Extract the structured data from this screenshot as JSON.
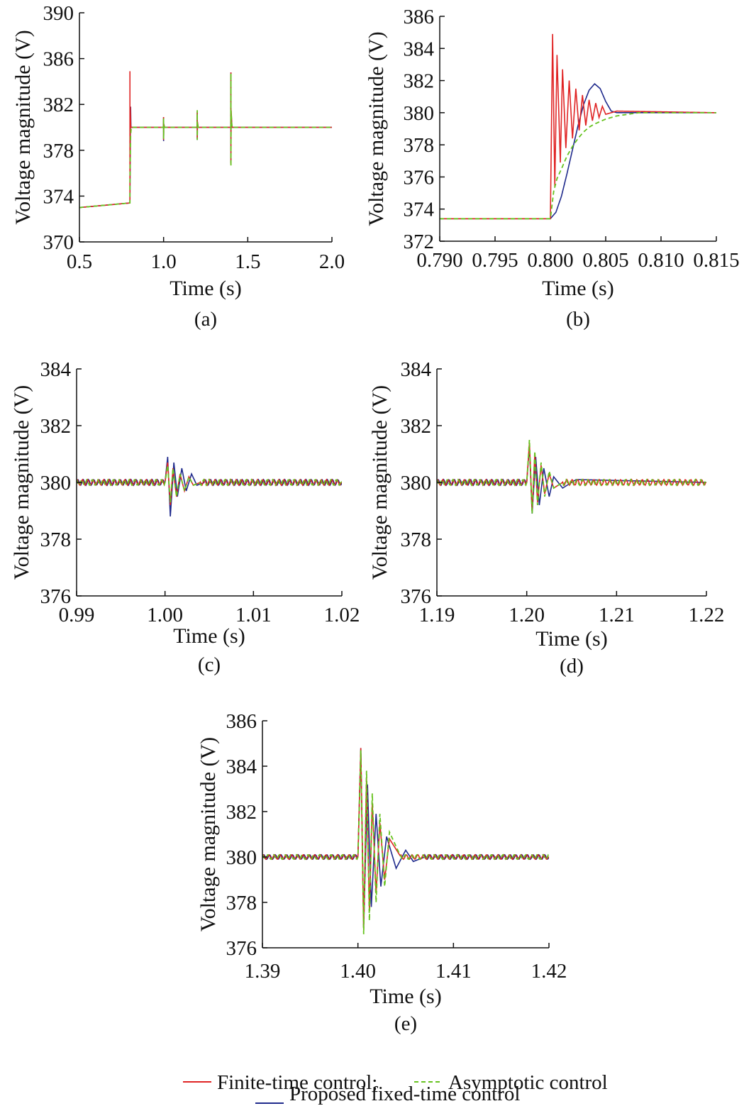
{
  "colors": {
    "finite": "#e02424",
    "asymptotic": "#66c21e",
    "fixed": "#1f2a8c",
    "axis": "#111111"
  },
  "legend": {
    "finite_label": "Finite-time control;",
    "asymptotic_label": "Asymptotic control",
    "fixed_label": "Proposed fixed-time control"
  },
  "chart_data": [
    {
      "type": "line",
      "panel_label": "(a)",
      "xlabel": "Time (s)",
      "ylabel": "Voltage magnitude (V)",
      "xlim": [
        0.5,
        2.0
      ],
      "ylim": [
        370,
        390
      ],
      "xticks": [
        "0.5",
        "1.0",
        "1.5",
        "2.0"
      ],
      "yticks": [
        "370",
        "374",
        "378",
        "382",
        "386",
        "390"
      ],
      "grid": false,
      "disturbance_times": [
        0.8,
        1.0,
        1.2,
        1.4
      ],
      "series": [
        {
          "name": "Finite-time control",
          "key": "finite",
          "x": [
            0.5,
            0.8,
            0.8,
            0.8,
            0.802,
            0.805,
            0.82,
            0.999,
            1.0,
            1.0,
            1.001,
            1.005,
            1.199,
            1.2,
            1.2,
            1.201,
            1.205,
            1.399,
            1.4,
            1.4,
            1.401,
            1.406,
            2.0
          ],
          "y": [
            373.0,
            373.4,
            384.9,
            375.0,
            381.8,
            380.0,
            380.0,
            380.0,
            380.9,
            378.9,
            380.3,
            380.0,
            380.0,
            381.4,
            379.0,
            380.5,
            380.0,
            380.0,
            384.8,
            376.8,
            381.5,
            380.0,
            380.0
          ]
        },
        {
          "name": "Asymptotic control",
          "key": "asymptotic",
          "x": [
            0.5,
            0.8,
            0.8,
            0.804,
            0.808,
            0.999,
            1.0,
            1.0,
            1.001,
            1.005,
            1.199,
            1.2,
            1.2,
            1.201,
            1.205,
            1.399,
            1.4,
            1.4,
            1.401,
            1.406,
            2.0
          ],
          "y": [
            373.0,
            373.4,
            375.0,
            379.3,
            380.0,
            380.0,
            380.8,
            379.0,
            380.3,
            380.0,
            380.0,
            381.5,
            378.9,
            380.4,
            380.0,
            380.0,
            384.7,
            376.6,
            381.4,
            380.0,
            380.0
          ]
        },
        {
          "name": "Proposed fixed-time control",
          "key": "fixed",
          "x": [
            0.5,
            0.8,
            0.803,
            0.804,
            0.806,
            0.999,
            1.0,
            1.0,
            1.001,
            1.005,
            1.199,
            1.2,
            1.2,
            1.201,
            1.205,
            1.399,
            1.4,
            1.4,
            1.401,
            1.406,
            2.0
          ],
          "y": [
            373.0,
            373.4,
            380.5,
            381.8,
            380.0,
            380.0,
            380.9,
            378.8,
            380.3,
            380.0,
            380.0,
            381.3,
            378.9,
            380.4,
            380.0,
            380.0,
            384.8,
            376.9,
            381.2,
            380.0,
            380.0
          ]
        }
      ]
    },
    {
      "type": "line",
      "panel_label": "(b)",
      "xlabel": "Time (s)",
      "ylabel": "Voltage magnitude (V)",
      "xlim": [
        0.79,
        0.815
      ],
      "ylim": [
        372,
        386
      ],
      "xticks": [
        "0.790",
        "0.795",
        "0.800",
        "0.805",
        "0.810",
        "0.815"
      ],
      "yticks": [
        "372",
        "374",
        "376",
        "378",
        "380",
        "382",
        "384",
        "386"
      ],
      "grid": false,
      "series": [
        {
          "name": "Finite-time control",
          "key": "finite",
          "x": [
            0.79,
            0.8,
            0.8002,
            0.8004,
            0.8006,
            0.8009,
            0.8011,
            0.8014,
            0.8017,
            0.802,
            0.8023,
            0.8026,
            0.8029,
            0.8032,
            0.8035,
            0.8038,
            0.8041,
            0.8044,
            0.8047,
            0.805,
            0.806,
            0.815
          ],
          "y": [
            373.4,
            373.4,
            384.9,
            375.4,
            383.6,
            376.9,
            382.7,
            377.8,
            382.0,
            378.4,
            381.5,
            378.9,
            381.1,
            379.2,
            380.8,
            379.5,
            380.6,
            379.7,
            380.4,
            379.9,
            380.1,
            380.0
          ]
        },
        {
          "name": "Asymptotic control",
          "key": "asymptotic",
          "x": [
            0.79,
            0.8,
            0.8003,
            0.8006,
            0.801,
            0.8015,
            0.802,
            0.8025,
            0.803,
            0.8035,
            0.804,
            0.805,
            0.806,
            0.808,
            0.815
          ],
          "y": [
            373.4,
            373.4,
            375.1,
            375.9,
            376.5,
            377.3,
            377.9,
            378.4,
            378.8,
            379.1,
            379.3,
            379.6,
            379.8,
            380.0,
            380.0
          ]
        },
        {
          "name": "Proposed fixed-time control",
          "key": "fixed",
          "x": [
            0.79,
            0.8,
            0.8005,
            0.801,
            0.8015,
            0.802,
            0.8025,
            0.803,
            0.8035,
            0.804,
            0.8045,
            0.805,
            0.8055,
            0.806,
            0.808,
            0.815
          ],
          "y": [
            373.4,
            373.4,
            373.8,
            374.8,
            376.2,
            377.7,
            379.2,
            380.5,
            381.4,
            381.8,
            381.5,
            380.7,
            380.1,
            380.0,
            380.0,
            380.0
          ]
        }
      ]
    },
    {
      "type": "line",
      "panel_label": "(c)",
      "xlabel": "Time (s)",
      "ylabel": "Voltage magnitude (V)",
      "xlim": [
        0.99,
        1.02
      ],
      "ylim": [
        376,
        384
      ],
      "xticks": [
        "0.99",
        "1.00",
        "1.01",
        "1.02"
      ],
      "yticks": [
        "376",
        "378",
        "380",
        "382",
        "384"
      ],
      "grid": false,
      "series": [
        {
          "name": "Finite-time control",
          "key": "finite",
          "x": [
            0.99,
            1.0,
            1.0003,
            1.0006,
            1.0009,
            1.0013,
            1.0017,
            1.0022,
            1.0027,
            1.0032,
            1.004,
            1.02
          ],
          "y": [
            380.0,
            380.0,
            380.7,
            379.2,
            380.5,
            379.5,
            380.3,
            379.7,
            380.2,
            379.9,
            380.0,
            380.0
          ]
        },
        {
          "name": "Asymptotic control",
          "key": "asymptotic",
          "x": [
            0.99,
            1.0,
            1.0003,
            1.0006,
            1.0009,
            1.0013,
            1.0017,
            1.0022,
            1.0027,
            1.0032,
            1.004,
            1.02
          ],
          "y": [
            380.0,
            380.0,
            380.6,
            379.3,
            380.5,
            379.5,
            380.3,
            379.7,
            380.2,
            379.9,
            380.0,
            380.0
          ]
        },
        {
          "name": "Proposed fixed-time control",
          "key": "fixed",
          "x": [
            0.99,
            1.0,
            1.0003,
            1.0006,
            1.001,
            1.0014,
            1.0019,
            1.0024,
            1.003,
            1.0036,
            1.0045,
            1.02
          ],
          "y": [
            380.0,
            380.0,
            380.9,
            378.8,
            380.7,
            379.5,
            380.5,
            379.7,
            380.3,
            379.9,
            380.0,
            380.0
          ]
        }
      ]
    },
    {
      "type": "line",
      "panel_label": "(d)",
      "xlabel": "Time (s)",
      "ylabel": "Voltage magnitude (V)",
      "xlim": [
        1.19,
        1.22
      ],
      "ylim": [
        376,
        384
      ],
      "xticks": [
        "1.19",
        "1.20",
        "1.21",
        "1.22"
      ],
      "yticks": [
        "376",
        "378",
        "380",
        "382",
        "384"
      ],
      "grid": false,
      "series": [
        {
          "name": "Finite-time control",
          "key": "finite",
          "x": [
            1.19,
            1.2,
            1.2003,
            1.2006,
            1.2009,
            1.2012,
            1.2016,
            1.202,
            1.2025,
            1.203,
            1.204,
            1.22
          ],
          "y": [
            380.0,
            380.0,
            381.4,
            379.0,
            381.0,
            379.3,
            380.6,
            379.6,
            380.3,
            379.8,
            380.0,
            380.0
          ]
        },
        {
          "name": "Asymptotic control",
          "key": "asymptotic",
          "x": [
            1.19,
            1.2,
            1.2003,
            1.2006,
            1.2009,
            1.2012,
            1.2016,
            1.202,
            1.2025,
            1.203,
            1.204,
            1.22
          ],
          "y": [
            380.0,
            380.0,
            381.5,
            378.9,
            381.1,
            379.2,
            380.7,
            379.5,
            380.4,
            379.8,
            380.0,
            380.0
          ]
        },
        {
          "name": "Proposed fixed-time control",
          "key": "fixed",
          "x": [
            1.19,
            1.2,
            1.2003,
            1.2006,
            1.201,
            1.2014,
            1.2019,
            1.2025,
            1.203,
            1.204,
            1.2055,
            1.22
          ],
          "y": [
            380.0,
            380.0,
            381.3,
            378.9,
            380.9,
            379.2,
            380.5,
            379.5,
            380.2,
            379.8,
            380.1,
            380.0
          ]
        }
      ]
    },
    {
      "type": "line",
      "panel_label": "(e)",
      "xlabel": "Time (s)",
      "ylabel": "Voltage magnitude (V)",
      "xlim": [
        1.39,
        1.42
      ],
      "ylim": [
        376,
        386
      ],
      "xticks": [
        "1.39",
        "1.40",
        "1.41",
        "1.42"
      ],
      "yticks": [
        "376",
        "378",
        "380",
        "382",
        "384",
        "386"
      ],
      "grid": false,
      "series": [
        {
          "name": "Finite-time control",
          "key": "finite",
          "x": [
            1.39,
            1.4,
            1.4003,
            1.4006,
            1.4009,
            1.4012,
            1.4015,
            1.4019,
            1.4023,
            1.4028,
            1.4033,
            1.4045,
            1.42
          ],
          "y": [
            380.0,
            380.0,
            384.8,
            376.8,
            383.5,
            377.6,
            382.4,
            378.4,
            381.5,
            379.0,
            380.8,
            380.0,
            380.0
          ]
        },
        {
          "name": "Asymptotic control",
          "key": "asymptotic",
          "x": [
            1.39,
            1.4,
            1.4003,
            1.4006,
            1.4009,
            1.4012,
            1.4015,
            1.4019,
            1.4023,
            1.4028,
            1.4033,
            1.4045,
            1.42
          ],
          "y": [
            380.0,
            380.0,
            384.7,
            376.6,
            383.8,
            377.2,
            382.8,
            378.0,
            381.9,
            378.7,
            381.1,
            380.0,
            380.0
          ]
        },
        {
          "name": "Proposed fixed-time control",
          "key": "fixed",
          "x": [
            1.39,
            1.4,
            1.4003,
            1.4006,
            1.401,
            1.4014,
            1.4019,
            1.4024,
            1.403,
            1.404,
            1.405,
            1.4058,
            1.407,
            1.42
          ],
          "y": [
            380.0,
            380.0,
            384.8,
            376.9,
            383.2,
            377.8,
            381.9,
            378.7,
            380.9,
            379.5,
            380.3,
            379.8,
            380.0,
            380.0
          ]
        }
      ]
    }
  ]
}
